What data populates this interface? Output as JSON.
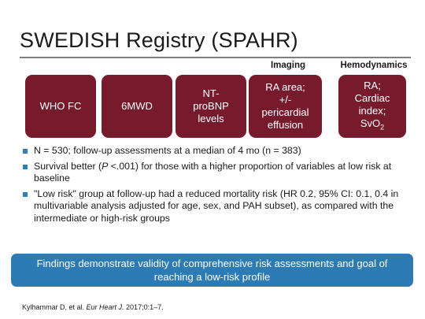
{
  "slide": {
    "title": "SWEDISH Registry (SPAHR)"
  },
  "group_labels": {
    "imaging": "Imaging",
    "hemodynamics": "Hemodynamics"
  },
  "boxes": [
    {
      "label": "WHO FC"
    },
    {
      "label": "6MWD"
    },
    {
      "label": "NT-\nproBNP\nlevels"
    },
    {
      "label": "RA area;\n+/-\npericardial\neffusion"
    },
    {
      "label": "RA;\nCardiac\nindex;\nSvO",
      "sub": "2"
    }
  ],
  "bullets": [
    {
      "text": "N = 530; follow-up assessments at a median of 4 mo (n = 383)"
    },
    {
      "prefix": "Survival better (",
      "italic": "P",
      "suffix": " <.001) for those with a higher proportion of variables at low risk at baseline"
    },
    {
      "text": "\"Low risk\" group at follow-up had a reduced mortality risk (HR 0.2, 95% CI: 0.1, 0.4 in multivariable analysis adjusted for age, sex, and PAH subset), as compared with the intermediate or high-risk groups"
    }
  ],
  "banner": {
    "text": "Findings demonstrate validity of comprehensive risk assessments and goal of reaching a low-risk profile"
  },
  "citation": {
    "authors": "Kylhammar D, et al. ",
    "journal": "Eur Heart J.",
    "details": " 2017;0:1–7."
  },
  "colors": {
    "box": "#761a2c",
    "banner": "#2d7bb5",
    "bullet": "#2e7fb8",
    "rule": "#7f7f7f"
  }
}
